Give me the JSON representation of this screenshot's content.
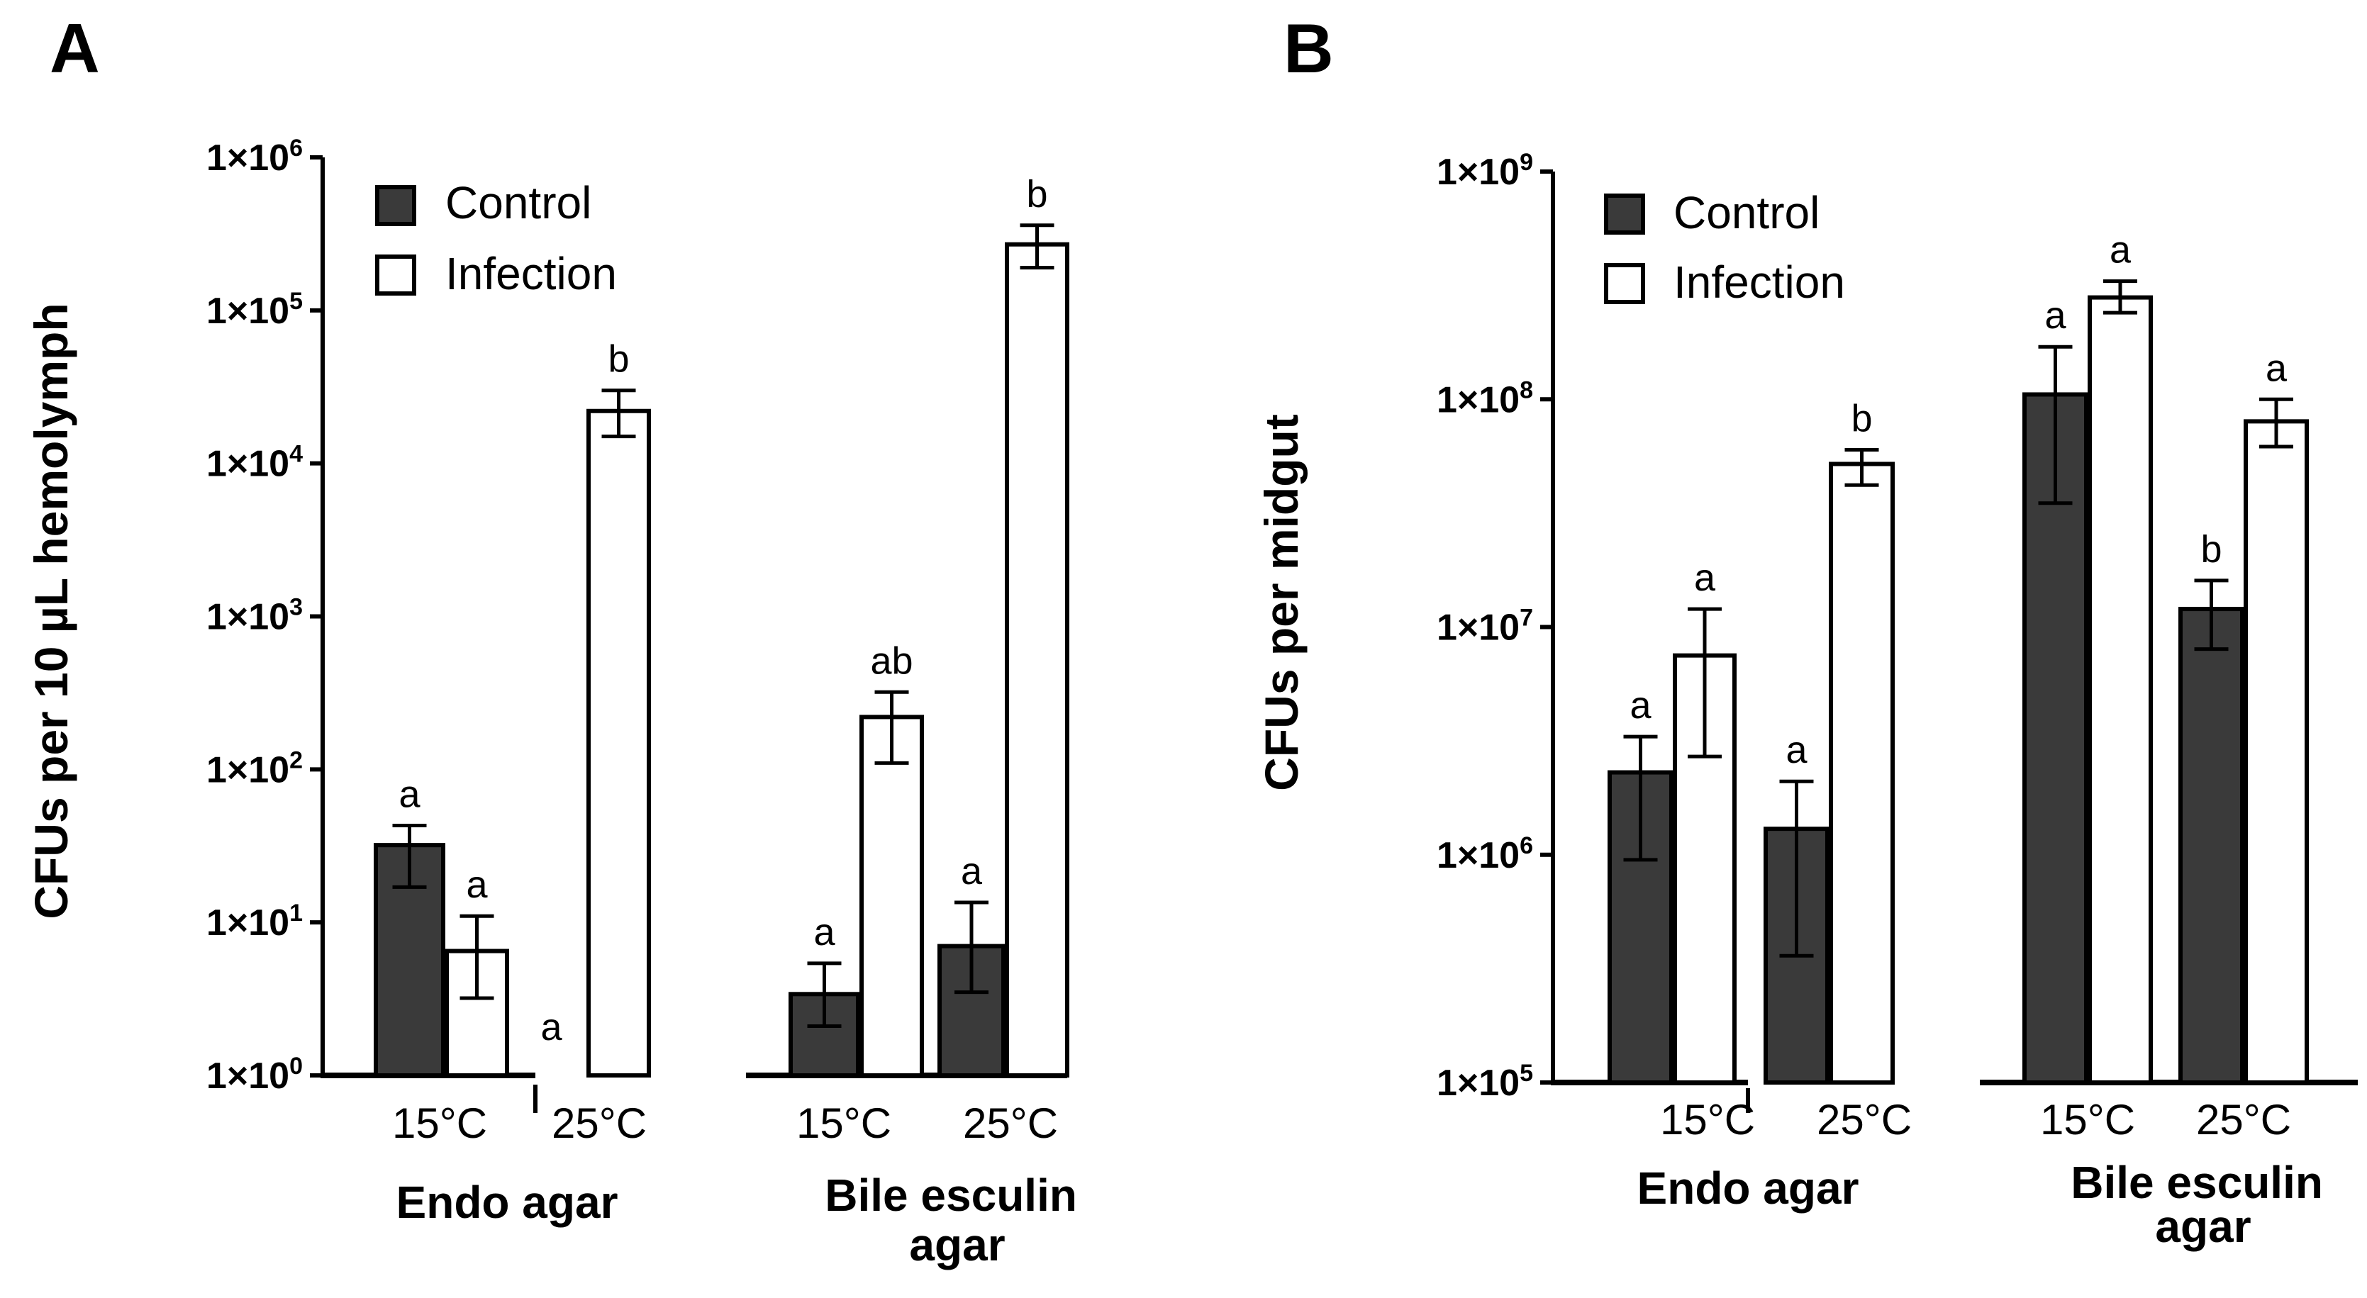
{
  "legend": {
    "control": "Control",
    "infection": "Infection"
  },
  "colors": {
    "control_fill": "#3a3a3a",
    "infection_fill": "#ffffff",
    "stroke": "#000000"
  },
  "chart_data": [
    {
      "panel": "A",
      "type": "bar",
      "scale": "log10",
      "ylabel": "CFUs per 10 µL hemolymph",
      "ylim": [
        1,
        1000000
      ],
      "yticks": [
        {
          "value": 1,
          "base": "1×10",
          "exp": "0"
        },
        {
          "value": 10,
          "base": "1×10",
          "exp": "1"
        },
        {
          "value": 100,
          "base": "1×10",
          "exp": "2"
        },
        {
          "value": 1000,
          "base": "1×10",
          "exp": "3"
        },
        {
          "value": 10000,
          "base": "1×10",
          "exp": "4"
        },
        {
          "value": 100000,
          "base": "1×10",
          "exp": "5"
        },
        {
          "value": 1000000,
          "base": "1×10",
          "exp": "6"
        }
      ],
      "groups": [
        {
          "label": "Endo agar",
          "categories": [
            {
              "label": "15°C",
              "control": {
                "value": 32,
                "err_low": 17,
                "err_high": 43,
                "letter": "a"
              },
              "infection": {
                "value": 6.5,
                "err_low": 3.2,
                "err_high": 11,
                "letter": "a"
              }
            },
            {
              "label": "25°C",
              "control": {
                "value": 1,
                "err_low": 1,
                "err_high": 1,
                "letter": "a"
              },
              "infection": {
                "value": 22000,
                "err_low": 15000,
                "err_high": 30000,
                "letter": "b"
              }
            }
          ]
        },
        {
          "label": "Bile esculin agar",
          "categories": [
            {
              "label": "15°C",
              "control": {
                "value": 3.4,
                "err_low": 2.1,
                "err_high": 5.4,
                "letter": "a"
              },
              "infection": {
                "value": 220,
                "err_low": 110,
                "err_high": 320,
                "letter": "ab"
              }
            },
            {
              "label": "25°C",
              "control": {
                "value": 7,
                "err_low": 3.5,
                "err_high": 13.5,
                "letter": "a"
              },
              "infection": {
                "value": 270000,
                "err_low": 190000,
                "err_high": 360000,
                "letter": "b"
              }
            }
          ]
        }
      ]
    },
    {
      "panel": "B",
      "type": "bar",
      "scale": "log10",
      "ylabel": "CFUs per midgut",
      "ylim": [
        100000,
        1000000000
      ],
      "yticks": [
        {
          "value": 100000,
          "base": "1×10",
          "exp": "5"
        },
        {
          "value": 1000000,
          "base": "1×10",
          "exp": "6"
        },
        {
          "value": 10000000,
          "base": "1×10",
          "exp": "7"
        },
        {
          "value": 100000000,
          "base": "1×10",
          "exp": "8"
        },
        {
          "value": 1000000000,
          "base": "1×10",
          "exp": "9"
        }
      ],
      "groups": [
        {
          "label": "Endo agar",
          "categories": [
            {
              "label": "15°C",
              "control": {
                "value": 2300000,
                "err_low": 950000,
                "err_high": 3300000,
                "letter": "a"
              },
              "infection": {
                "value": 7500000,
                "err_low": 2700000,
                "err_high": 12000000,
                "letter": "a"
              }
            },
            {
              "label": "25°C",
              "control": {
                "value": 1300000,
                "err_low": 360000,
                "err_high": 2100000,
                "letter": "a"
              },
              "infection": {
                "value": 52000000,
                "err_low": 42000000,
                "err_high": 60000000,
                "letter": "b"
              }
            }
          ]
        },
        {
          "label": "Bile esculin agar",
          "categories": [
            {
              "label": "15°C",
              "control": {
                "value": 105000000,
                "err_low": 35000000,
                "err_high": 170000000,
                "letter": "a"
              },
              "infection": {
                "value": 280000000,
                "err_low": 240000000,
                "err_high": 330000000,
                "letter": "a"
              }
            },
            {
              "label": "25°C",
              "control": {
                "value": 12000000,
                "err_low": 8000000,
                "err_high": 16000000,
                "letter": "b"
              },
              "infection": {
                "value": 80000000,
                "err_low": 62000000,
                "err_high": 100000000,
                "letter": "a"
              }
            }
          ]
        }
      ]
    }
  ]
}
